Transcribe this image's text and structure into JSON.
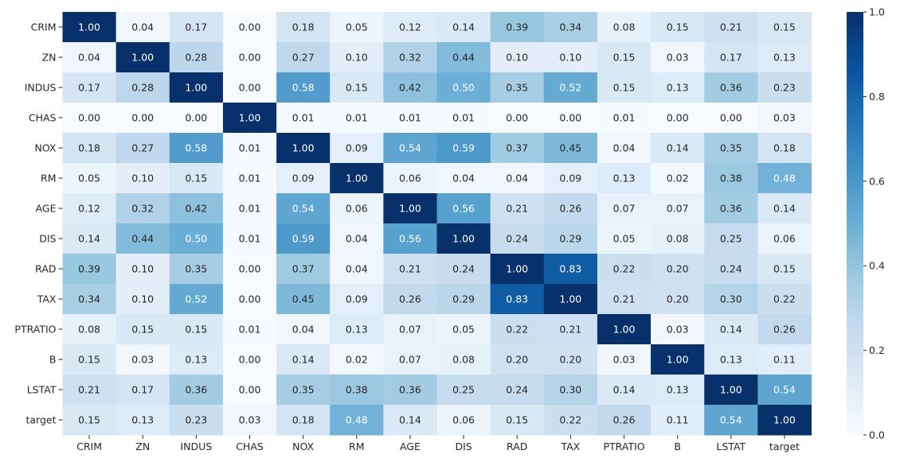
{
  "chart_data": {
    "type": "heatmap",
    "title": "",
    "xlabel": "",
    "ylabel": "",
    "colormap": "Blues",
    "colormap_stops": [
      "#f7fbff",
      "#deebf7",
      "#c6dbef",
      "#9ecae1",
      "#6baed6",
      "#4292c6",
      "#2171b5",
      "#08519c",
      "#08306b"
    ],
    "value_range": [
      0,
      1
    ],
    "annotation_format": "0.00",
    "x_labels": [
      "CRIM",
      "ZN",
      "INDUS",
      "CHAS",
      "NOX",
      "RM",
      "AGE",
      "DIS",
      "RAD",
      "TAX",
      "PTRATIO",
      "B",
      "LSTAT",
      "target"
    ],
    "y_labels": [
      "CRIM",
      "ZN",
      "INDUS",
      "CHAS",
      "NOX",
      "RM",
      "AGE",
      "DIS",
      "RAD",
      "TAX",
      "PTRATIO",
      "B",
      "LSTAT",
      "target"
    ],
    "values": [
      [
        1.0,
        0.04,
        0.17,
        0.0,
        0.18,
        0.05,
        0.12,
        0.14,
        0.39,
        0.34,
        0.08,
        0.15,
        0.21,
        0.15
      ],
      [
        0.04,
        1.0,
        0.28,
        0.0,
        0.27,
        0.1,
        0.32,
        0.44,
        0.1,
        0.1,
        0.15,
        0.03,
        0.17,
        0.13
      ],
      [
        0.17,
        0.28,
        1.0,
        0.0,
        0.58,
        0.15,
        0.42,
        0.5,
        0.35,
        0.52,
        0.15,
        0.13,
        0.36,
        0.23
      ],
      [
        0.0,
        0.0,
        0.0,
        1.0,
        0.01,
        0.01,
        0.01,
        0.01,
        0.0,
        0.0,
        0.01,
        0.0,
        0.0,
        0.03
      ],
      [
        0.18,
        0.27,
        0.58,
        0.01,
        1.0,
        0.09,
        0.54,
        0.59,
        0.37,
        0.45,
        0.04,
        0.14,
        0.35,
        0.18
      ],
      [
        0.05,
        0.1,
        0.15,
        0.01,
        0.09,
        1.0,
        0.06,
        0.04,
        0.04,
        0.09,
        0.13,
        0.02,
        0.38,
        0.48
      ],
      [
        0.12,
        0.32,
        0.42,
        0.01,
        0.54,
        0.06,
        1.0,
        0.56,
        0.21,
        0.26,
        0.07,
        0.07,
        0.36,
        0.14
      ],
      [
        0.14,
        0.44,
        0.5,
        0.01,
        0.59,
        0.04,
        0.56,
        1.0,
        0.24,
        0.29,
        0.05,
        0.08,
        0.25,
        0.06
      ],
      [
        0.39,
        0.1,
        0.35,
        0.0,
        0.37,
        0.04,
        0.21,
        0.24,
        1.0,
        0.83,
        0.22,
        0.2,
        0.24,
        0.15
      ],
      [
        0.34,
        0.1,
        0.52,
        0.0,
        0.45,
        0.09,
        0.26,
        0.29,
        0.83,
        1.0,
        0.21,
        0.2,
        0.3,
        0.22
      ],
      [
        0.08,
        0.15,
        0.15,
        0.01,
        0.04,
        0.13,
        0.07,
        0.05,
        0.22,
        0.21,
        1.0,
        0.03,
        0.14,
        0.26
      ],
      [
        0.15,
        0.03,
        0.13,
        0.0,
        0.14,
        0.02,
        0.07,
        0.08,
        0.2,
        0.2,
        0.03,
        1.0,
        0.13,
        0.11
      ],
      [
        0.21,
        0.17,
        0.36,
        0.0,
        0.35,
        0.38,
        0.36,
        0.25,
        0.24,
        0.3,
        0.14,
        0.13,
        1.0,
        0.54
      ],
      [
        0.15,
        0.13,
        0.23,
        0.03,
        0.18,
        0.48,
        0.14,
        0.06,
        0.15,
        0.22,
        0.26,
        0.11,
        0.54,
        1.0
      ]
    ],
    "colorbar": {
      "ticks": [
        0.0,
        0.2,
        0.4,
        0.6,
        0.8,
        1.0
      ],
      "tick_labels": [
        "0.0",
        "0.2",
        "0.4",
        "0.6",
        "0.8",
        "1.0"
      ]
    }
  }
}
